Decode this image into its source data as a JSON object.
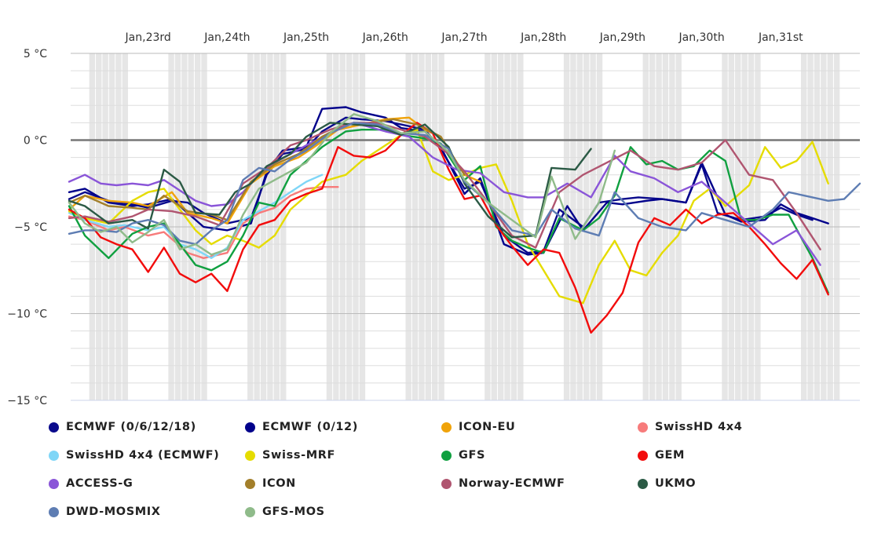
{
  "chart_data": {
    "type": "line",
    "ylabel_unit": "°C",
    "ylim": [
      -15,
      5
    ],
    "yticks": [
      {
        "value": 5,
        "label": "5 °C"
      },
      {
        "value": 0,
        "label": "0 °C"
      },
      {
        "value": -5,
        "label": "−5 °C"
      },
      {
        "value": -10,
        "label": "−10 °C"
      },
      {
        "value": -15,
        "label": "−15 °C"
      }
    ],
    "xlim": [
      22.02,
      32.0
    ],
    "xticks": [
      {
        "value": 23,
        "label": "Jan,23rd"
      },
      {
        "value": 24,
        "label": "Jan,24th"
      },
      {
        "value": 25,
        "label": "Jan,25th"
      },
      {
        "value": 26,
        "label": "Jan,26th"
      },
      {
        "value": 27,
        "label": "Jan,27th"
      },
      {
        "value": 28,
        "label": "Jan,28th"
      },
      {
        "value": 29,
        "label": "Jan,29th"
      },
      {
        "value": 30,
        "label": "Jan,30th"
      },
      {
        "value": 31,
        "label": "Jan,31st"
      }
    ],
    "night_shading": [
      [
        22.25,
        22.75
      ],
      [
        23.25,
        23.75
      ],
      [
        24.25,
        24.75
      ],
      [
        25.25,
        25.75
      ],
      [
        26.25,
        26.75
      ],
      [
        27.25,
        27.75
      ],
      [
        28.25,
        28.75
      ],
      [
        29.25,
        29.75
      ],
      [
        30.25,
        30.75
      ],
      [
        31.25,
        31.75
      ]
    ],
    "grid": true,
    "legend_position": "bottom",
    "series": [
      {
        "name": "ECMWF (0/6/12/18)",
        "color": "#0a0a8c",
        "x": [
          22.0,
          22.2,
          22.5,
          22.8,
          23.0,
          23.3,
          23.5,
          23.7,
          24.0,
          24.3,
          24.5,
          24.7,
          25.0,
          25.2,
          25.5,
          25.7,
          26.0,
          26.2,
          26.5,
          26.7,
          27.0,
          27.2,
          27.5,
          27.8,
          28.0,
          28.2,
          28.5,
          28.7,
          29.0,
          29.2,
          29.5,
          29.8,
          30.0,
          30.2,
          30.5,
          30.8,
          31.0,
          31.2,
          31.4
        ],
        "y": [
          -3.4,
          -3.0,
          -3.5,
          -3.7,
          -3.9,
          -3.5,
          -3.6,
          -4.2,
          -4.8,
          -4.5,
          -2.0,
          -0.8,
          -0.5,
          0.5,
          1.3,
          1.2,
          1.1,
          0.9,
          0.6,
          -0.5,
          -2.8,
          -2.4,
          -5.5,
          -6.5,
          -6.4,
          -4.0,
          -5.0,
          -3.6,
          -3.4,
          -3.3,
          -3.4,
          -3.6,
          -1.4,
          -4.2,
          -4.6,
          -4.4,
          -3.9,
          -4.3,
          -4.6
        ]
      },
      {
        "name": "ECMWF (0/12)",
        "color": "#00008b",
        "x": [
          22.0,
          22.2,
          22.5,
          22.8,
          23.0,
          23.3,
          23.5,
          23.7,
          24.0,
          24.3,
          24.5,
          24.7,
          25.0,
          25.2,
          25.5,
          25.7,
          26.0,
          26.2,
          26.5,
          26.7,
          27.0,
          27.2,
          27.5,
          27.8,
          28.0,
          28.3,
          28.5,
          28.8,
          29.0,
          29.3,
          29.5,
          29.8,
          30.0,
          30.3,
          30.5,
          30.8,
          31.0,
          31.2,
          31.4,
          31.6
        ],
        "y": [
          -3.0,
          -2.8,
          -3.6,
          -3.8,
          -3.7,
          -3.4,
          -4.2,
          -5.0,
          -5.2,
          -4.8,
          -1.8,
          -0.6,
          -0.4,
          1.8,
          1.9,
          1.6,
          1.3,
          0.7,
          0.5,
          -0.4,
          -3.1,
          -2.2,
          -6.0,
          -6.6,
          -6.5,
          -3.8,
          -5.2,
          -3.6,
          -3.7,
          -3.5,
          -3.4,
          -3.6,
          -1.3,
          -4.3,
          -4.7,
          -4.6,
          -3.7,
          -4.2,
          -4.5,
          -4.8
        ]
      },
      {
        "name": "ICON-EU",
        "color": "#f0a30a",
        "x": [
          22.0,
          22.2,
          22.5,
          22.8,
          23.0,
          23.3,
          23.5,
          23.8,
          24.0,
          24.3,
          24.6,
          24.9,
          25.1,
          25.4,
          25.7,
          26.0,
          26.3,
          26.5,
          26.7,
          27.0,
          27.2
        ],
        "y": [
          -4.0,
          -3.2,
          -3.5,
          -3.6,
          -3.8,
          -3.0,
          -4.2,
          -4.5,
          -4.8,
          -2.5,
          -1.5,
          -1.0,
          -0.4,
          0.6,
          0.9,
          1.2,
          1.3,
          0.6,
          0.2,
          -2.0,
          -2.4
        ]
      },
      {
        "name": "SwissHD 4x4",
        "color": "#f77b7b",
        "x": [
          22.0,
          22.2,
          22.5,
          22.7,
          23.0,
          23.2,
          23.5,
          23.7,
          24.0,
          24.2,
          24.4,
          24.6,
          24.8,
          25.0,
          25.2,
          25.4
        ],
        "y": [
          -4.4,
          -4.6,
          -5.2,
          -5.0,
          -5.5,
          -5.3,
          -6.5,
          -6.8,
          -6.5,
          -4.8,
          -4.2,
          -3.9,
          -3.2,
          -2.8,
          -2.7,
          -2.7
        ]
      },
      {
        "name": "SwissHD 4x4 (ECMWF)",
        "color": "#7fd6f7",
        "x": [
          22.0,
          22.2,
          22.5,
          22.7,
          23.0,
          23.2,
          23.4,
          23.6,
          23.8,
          24.0,
          24.2,
          24.4,
          24.6,
          24.8,
          25.0,
          25.2
        ],
        "y": [
          -4.2,
          -4.6,
          -5.0,
          -4.9,
          -5.2,
          -5.0,
          -6.0,
          -6.3,
          -6.8,
          -6.2,
          -4.6,
          -4.1,
          -3.6,
          -3.0,
          -2.4,
          -2.0
        ]
      },
      {
        "name": "Swiss-MRF",
        "color": "#e5dc00",
        "x": [
          22.0,
          22.2,
          22.5,
          22.8,
          23.0,
          23.2,
          23.4,
          23.6,
          23.8,
          24.0,
          24.2,
          24.4,
          24.6,
          24.8,
          25.0,
          25.2,
          25.5,
          25.7,
          26.0,
          26.2,
          26.4,
          26.6,
          26.8,
          27.0,
          27.2,
          27.4,
          27.6,
          27.8,
          28.0,
          28.2,
          28.5,
          28.7,
          28.9,
          29.1,
          29.3,
          29.5,
          29.7,
          29.9,
          30.1,
          30.3,
          30.6,
          30.8,
          31.0,
          31.2,
          31.4,
          31.6
        ],
        "y": [
          -4.1,
          -4.5,
          -4.8,
          -3.5,
          -3.0,
          -2.8,
          -4.0,
          -5.2,
          -6.0,
          -5.5,
          -5.8,
          -6.2,
          -5.5,
          -4.0,
          -3.2,
          -2.4,
          -2.0,
          -1.2,
          -0.3,
          0.3,
          0.6,
          -1.8,
          -2.3,
          -2.0,
          -1.6,
          -1.4,
          -3.5,
          -6.0,
          -7.5,
          -9.0,
          -9.4,
          -7.2,
          -5.8,
          -7.5,
          -7.8,
          -6.5,
          -5.5,
          -3.5,
          -2.8,
          -3.8,
          -2.6,
          -0.4,
          -1.6,
          -1.2,
          -0.1,
          -2.5
        ]
      },
      {
        "name": "GFS",
        "color": "#10a040",
        "x": [
          22.0,
          22.2,
          22.5,
          22.8,
          23.0,
          23.2,
          23.4,
          23.6,
          23.8,
          24.0,
          24.2,
          24.4,
          24.6,
          24.8,
          25.0,
          25.2,
          25.5,
          25.7,
          26.0,
          26.2,
          26.5,
          26.7,
          27.0,
          27.2,
          27.4,
          27.6,
          27.8,
          28.0,
          28.2,
          28.5,
          28.7,
          28.9,
          29.1,
          29.3,
          29.5,
          29.7,
          29.9,
          30.1,
          30.3,
          30.5,
          30.7,
          30.9,
          31.1,
          31.4,
          31.6
        ],
        "y": [
          -3.8,
          -5.5,
          -6.8,
          -5.4,
          -5.0,
          -4.8,
          -6.0,
          -7.2,
          -7.5,
          -7.0,
          -5.5,
          -3.6,
          -3.8,
          -2.0,
          -1.2,
          -0.4,
          0.5,
          0.6,
          0.6,
          0.3,
          0.1,
          -0.2,
          -2.3,
          -1.5,
          -5.0,
          -5.8,
          -6.2,
          -6.5,
          -4.5,
          -5.2,
          -4.5,
          -3.2,
          -0.4,
          -1.4,
          -1.2,
          -1.7,
          -1.5,
          -0.6,
          -1.2,
          -4.6,
          -4.6,
          -4.3,
          -4.3,
          -6.8,
          -8.8
        ]
      },
      {
        "name": "GEM",
        "color": "#f20c0c",
        "x": [
          22.0,
          22.2,
          22.4,
          22.6,
          22.8,
          23.0,
          23.2,
          23.4,
          23.6,
          23.8,
          24.0,
          24.2,
          24.4,
          24.6,
          24.8,
          25.0,
          25.2,
          25.4,
          25.6,
          25.8,
          26.0,
          26.2,
          26.4,
          26.6,
          26.8,
          27.0,
          27.2,
          27.4,
          27.6,
          27.8,
          28.0,
          28.2,
          28.4,
          28.6,
          28.8,
          29.0,
          29.2,
          29.4,
          29.6,
          29.8,
          30.0,
          30.2,
          30.4,
          30.6,
          30.8,
          31.0,
          31.2,
          31.4,
          31.6
        ],
        "y": [
          -4.0,
          -4.5,
          -5.6,
          -6.0,
          -6.3,
          -7.6,
          -6.2,
          -7.7,
          -8.2,
          -7.7,
          -8.7,
          -6.3,
          -4.9,
          -4.6,
          -3.5,
          -3.1,
          -2.8,
          -0.4,
          -0.9,
          -1.0,
          -0.6,
          0.3,
          1.0,
          0.4,
          -1.7,
          -3.4,
          -3.2,
          -4.9,
          -6.1,
          -7.2,
          -6.3,
          -6.5,
          -8.5,
          -11.1,
          -10.1,
          -8.8,
          -5.9,
          -4.5,
          -4.9,
          -4.0,
          -4.8,
          -4.3,
          -4.2,
          -5.0,
          -6.0,
          -7.1,
          -8.0,
          -6.9,
          -8.9
        ]
      },
      {
        "name": "ACCESS-G",
        "color": "#8a55d8",
        "x": [
          22.0,
          22.2,
          22.4,
          22.6,
          22.8,
          23.0,
          23.2,
          23.4,
          23.6,
          23.8,
          24.0,
          24.2,
          24.4,
          24.6,
          24.8,
          25.0,
          25.3,
          25.6,
          26.0,
          26.3,
          26.6,
          26.9,
          27.2,
          27.5,
          27.8,
          28.0,
          28.3,
          28.6,
          28.9,
          29.1,
          29.4,
          29.7,
          30.0,
          30.3,
          30.6,
          30.9,
          31.2,
          31.5
        ],
        "y": [
          -2.4,
          -2.0,
          -2.5,
          -2.6,
          -2.5,
          -2.6,
          -2.3,
          -2.9,
          -3.5,
          -3.8,
          -3.7,
          -3.0,
          -2.0,
          -1.3,
          -0.8,
          -0.3,
          0.4,
          1.0,
          0.5,
          0.2,
          -1.0,
          -1.7,
          -1.9,
          -3.0,
          -3.3,
          -3.3,
          -2.5,
          -3.3,
          -0.9,
          -1.8,
          -2.2,
          -3.0,
          -2.4,
          -3.6,
          -4.8,
          -6.0,
          -5.2,
          -7.2
        ]
      },
      {
        "name": "ICON",
        "color": "#a37f2a",
        "x": [
          22.0,
          22.2,
          22.5,
          22.8,
          23.0,
          23.2,
          23.5,
          23.8,
          24.0,
          24.3,
          24.6,
          24.9,
          25.2,
          25.5,
          25.8,
          26.1,
          26.4,
          26.7,
          27.0
        ],
        "y": [
          -3.6,
          -3.2,
          -3.8,
          -3.9,
          -4.0,
          -3.2,
          -4.1,
          -4.3,
          -4.6,
          -2.4,
          -1.4,
          -0.8,
          0.2,
          0.9,
          1.0,
          1.2,
          0.9,
          0.2,
          -2.0
        ]
      },
      {
        "name": "Norway-ECMWF",
        "color": "#b05570",
        "x": [
          22.0,
          22.2,
          22.5,
          22.8,
          23.0,
          23.3,
          23.6,
          23.9,
          24.2,
          24.5,
          24.8,
          25.0,
          25.3,
          25.6,
          25.9,
          26.2,
          26.5,
          26.8,
          27.0,
          27.3,
          27.6,
          27.9,
          28.2,
          28.5,
          28.8,
          29.1,
          29.4,
          29.7,
          30.0,
          30.3,
          30.6,
          30.9,
          31.2,
          31.5
        ],
        "y": [
          -4.5,
          -4.4,
          -4.7,
          -4.4,
          -4.0,
          -4.1,
          -4.4,
          -4.9,
          -2.5,
          -1.6,
          -0.3,
          0.0,
          0.6,
          1.0,
          1.0,
          0.6,
          0.2,
          -0.8,
          -1.8,
          -3.6,
          -5.5,
          -6.2,
          -3.0,
          -2.0,
          -1.3,
          -0.6,
          -1.5,
          -1.7,
          -1.3,
          0.0,
          -2.0,
          -2.3,
          -4.2,
          -6.3
        ]
      },
      {
        "name": "UKMO",
        "color": "#2b5a45",
        "x": [
          22.0,
          22.2,
          22.5,
          22.8,
          23.0,
          23.2,
          23.4,
          23.6,
          23.9,
          24.1,
          24.3,
          24.5,
          24.8,
          25.0,
          25.3,
          25.6,
          25.9,
          26.2,
          26.5,
          26.8,
          27.0,
          27.3,
          27.6,
          27.9,
          28.1,
          28.4,
          28.6
        ],
        "y": [
          -3.5,
          -3.8,
          -4.8,
          -4.6,
          -5.1,
          -1.7,
          -2.4,
          -4.2,
          -4.3,
          -3.0,
          -2.5,
          -1.5,
          -0.8,
          0.2,
          1.0,
          0.9,
          0.8,
          0.3,
          0.9,
          -0.4,
          -2.5,
          -4.4,
          -5.6,
          -5.5,
          -1.6,
          -1.7,
          -0.5
        ]
      },
      {
        "name": "DWD-MOSMIX",
        "color": "#5e7db3",
        "x": [
          22.0,
          22.2,
          22.4,
          22.6,
          22.8,
          23.0,
          23.2,
          23.4,
          23.6,
          23.8,
          24.0,
          24.2,
          24.4,
          24.6,
          24.8,
          25.0,
          25.3,
          25.6,
          25.9,
          26.2,
          26.5,
          26.8,
          27.0,
          27.3,
          27.6,
          27.9,
          28.1,
          28.4,
          28.7,
          28.9,
          29.2,
          29.5,
          29.8,
          30.0,
          30.3,
          30.6,
          30.9,
          31.1,
          31.4,
          31.6,
          31.8,
          32.0
        ],
        "y": [
          -5.4,
          -5.2,
          -5.2,
          -5.3,
          -4.8,
          -4.6,
          -4.9,
          -5.8,
          -6.0,
          -5.2,
          -4.6,
          -2.3,
          -1.6,
          -1.8,
          -1.1,
          -0.6,
          0.4,
          1.0,
          0.9,
          0.4,
          0.3,
          -0.5,
          -2.4,
          -3.6,
          -5.2,
          -5.5,
          -4.0,
          -5.1,
          -5.5,
          -3.0,
          -4.5,
          -5.0,
          -5.2,
          -4.2,
          -4.6,
          -5.0,
          -4.0,
          -3.0,
          -3.3,
          -3.5,
          -3.4,
          -2.5
        ]
      },
      {
        "name": "GFS-MOS",
        "color": "#8fbb8a",
        "x": [
          22.0,
          22.2,
          22.4,
          22.6,
          22.8,
          23.0,
          23.2,
          23.4,
          23.6,
          23.8,
          24.0,
          24.2,
          24.4,
          24.6,
          24.8,
          25.0,
          25.3,
          25.6,
          25.9,
          26.2,
          26.5,
          26.8,
          27.0,
          27.3,
          27.6,
          27.9,
          28.1,
          28.4,
          28.7,
          28.9
        ],
        "y": [
          -3.6,
          -4.8,
          -5.3,
          -5.0,
          -5.9,
          -5.3,
          -4.6,
          -6.3,
          -6.0,
          -6.6,
          -6.3,
          -4.3,
          -2.8,
          -2.3,
          -1.8,
          -1.3,
          0.4,
          1.5,
          1.1,
          0.4,
          0.5,
          -0.7,
          -2.3,
          -3.6,
          -4.6,
          -5.6,
          -2.1,
          -5.7,
          -3.6,
          -0.6
        ]
      }
    ]
  }
}
